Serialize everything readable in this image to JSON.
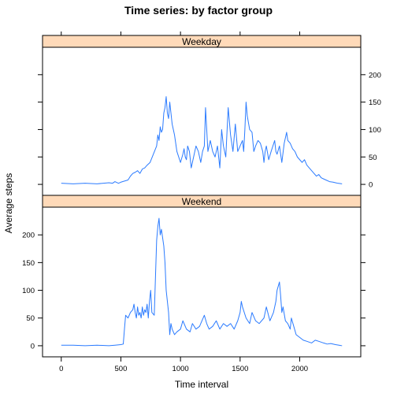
{
  "chart_data": {
    "type": "line",
    "title": "Time series: by factor group",
    "xlabel": "Time interval",
    "ylabel": "Average steps",
    "xlim": [
      -157,
      2512
    ],
    "ylim": [
      -20,
      250
    ],
    "x_ticks": [
      0,
      500,
      1000,
      1500,
      2000
    ],
    "x_tick_labels": [
      "0",
      "500",
      "1000",
      "1500",
      "2000"
    ],
    "y_ticks": [
      0,
      50,
      100,
      150,
      200
    ],
    "y_tick_labels": [
      "0",
      "50",
      "100",
      "150",
      "200"
    ],
    "line_color": "#2b7bff",
    "strip_color": "#ffdab9",
    "panels": [
      {
        "name": "Weekday",
        "strip_label": "Weekday",
        "y_tick_side": "right",
        "series": [
          {
            "name": "Weekday",
            "x": [
              0,
              100,
              200,
              300,
              400,
              430,
              450,
              480,
              500,
              530,
              560,
              580,
              600,
              620,
              640,
              660,
              680,
              700,
              720,
              745,
              800,
              810,
              820,
              830,
              840,
              850,
              860,
              870,
              880,
              890,
              900,
              910,
              930,
              950,
              970,
              1000,
              1020,
              1030,
              1040,
              1050,
              1060,
              1075,
              1090,
              1100,
              1110,
              1130,
              1150,
              1170,
              1185,
              1200,
              1210,
              1220,
              1230,
              1250,
              1270,
              1290,
              1310,
              1330,
              1345,
              1360,
              1380,
              1400,
              1420,
              1440,
              1460,
              1480,
              1500,
              1520,
              1530,
              1540,
              1550,
              1560,
              1580,
              1600,
              1615,
              1630,
              1650,
              1670,
              1690,
              1700,
              1710,
              1720,
              1740,
              1760,
              1790,
              1800,
              1810,
              1830,
              1850,
              1870,
              1890,
              1900,
              1920,
              1940,
              1960,
              1980,
              2000,
              2020,
              2040,
              2060,
              2080,
              2100,
              2120,
              2140,
              2160,
              2180,
              2200,
              2220,
              2250,
              2280,
              2300,
              2320,
              2355
            ],
            "values": [
              2,
              1,
              2,
              1,
              3,
              2,
              5,
              2,
              4,
              6,
              8,
              15,
              20,
              22,
              25,
              20,
              28,
              30,
              35,
              40,
              70,
              90,
              80,
              105,
              95,
              100,
              130,
              140,
              160,
              130,
              120,
              150,
              110,
              90,
              60,
              40,
              55,
              65,
              50,
              45,
              70,
              60,
              30,
              40,
              50,
              70,
              60,
              40,
              60,
              70,
              140,
              100,
              60,
              80,
              60,
              50,
              70,
              30,
              100,
              70,
              50,
              140,
              90,
              60,
              110,
              60,
              70,
              80,
              60,
              100,
              150,
              125,
              100,
              95,
              60,
              70,
              80,
              75,
              60,
              40,
              60,
              70,
              45,
              60,
              80,
              60,
              55,
              70,
              40,
              75,
              95,
              80,
              75,
              65,
              60,
              50,
              45,
              40,
              45,
              35,
              30,
              25,
              20,
              15,
              18,
              12,
              10,
              8,
              5,
              4,
              3,
              2,
              1
            ]
          }
        ]
      },
      {
        "name": "Weekend",
        "strip_label": "Weekend",
        "y_tick_side": "left",
        "series": [
          {
            "name": "Weekend",
            "x": [
              0,
              100,
              200,
              300,
              400,
              450,
              500,
              520,
              530,
              540,
              560,
              580,
              600,
              610,
              620,
              630,
              640,
              650,
              660,
              670,
              680,
              690,
              700,
              710,
              720,
              730,
              740,
              750,
              760,
              780,
              800,
              810,
              820,
              830,
              840,
              850,
              860,
              870,
              880,
              900,
              910,
              920,
              930,
              940,
              950,
              970,
              1000,
              1020,
              1050,
              1080,
              1100,
              1130,
              1160,
              1200,
              1220,
              1240,
              1270,
              1300,
              1330,
              1360,
              1390,
              1420,
              1450,
              1480,
              1500,
              1510,
              1520,
              1550,
              1580,
              1600,
              1630,
              1660,
              1700,
              1720,
              1750,
              1780,
              1800,
              1810,
              1830,
              1840,
              1850,
              1860,
              1880,
              1900,
              1920,
              1930,
              1950,
              1970,
              2000,
              2030,
              2060,
              2100,
              2130,
              2160,
              2200,
              2230,
              2260,
              2300,
              2330,
              2355
            ],
            "values": [
              1,
              1,
              0,
              1,
              0,
              1,
              2,
              3,
              30,
              55,
              50,
              60,
              65,
              75,
              60,
              50,
              70,
              55,
              60,
              50,
              70,
              55,
              65,
              60,
              75,
              50,
              80,
              100,
              60,
              55,
              190,
              215,
              230,
              200,
              210,
              195,
              180,
              150,
              100,
              60,
              20,
              40,
              30,
              25,
              20,
              25,
              30,
              45,
              30,
              25,
              40,
              30,
              35,
              55,
              40,
              30,
              35,
              45,
              30,
              40,
              35,
              40,
              30,
              45,
              60,
              80,
              70,
              50,
              40,
              60,
              45,
              40,
              50,
              70,
              45,
              60,
              80,
              100,
              115,
              90,
              60,
              70,
              45,
              40,
              30,
              50,
              35,
              20,
              15,
              10,
              8,
              5,
              10,
              8,
              5,
              3,
              4,
              2,
              1,
              0
            ]
          }
        ]
      }
    ]
  }
}
